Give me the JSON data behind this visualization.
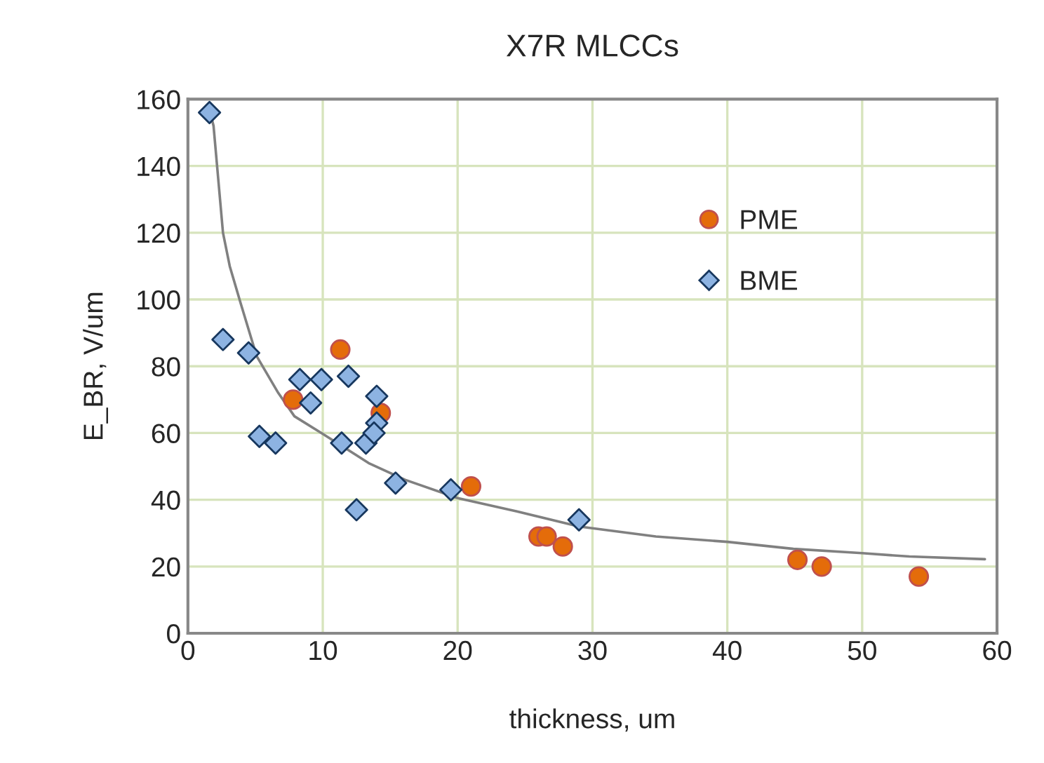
{
  "chart_data": {
    "type": "scatter",
    "title": "X7R MLCCs",
    "xlabel": "thickness, um",
    "ylabel": "E_BR, V/um",
    "xlim": [
      0,
      60
    ],
    "ylim": [
      0,
      160
    ],
    "xticks": [
      0,
      10,
      20,
      30,
      40,
      50,
      60
    ],
    "yticks": [
      0,
      20,
      40,
      60,
      80,
      100,
      120,
      140,
      160
    ],
    "grid": true,
    "legend": "top right",
    "series": [
      {
        "name": "PME",
        "marker": "circle",
        "color": "#e46c0a",
        "x": [
          7.8,
          11.3,
          14.3,
          21.0,
          26.0,
          26.6,
          27.8,
          45.2,
          47.0,
          54.2
        ],
        "values": [
          70,
          85,
          66,
          44,
          29,
          29,
          26,
          22,
          20,
          17
        ]
      },
      {
        "name": "BME",
        "marker": "diamond",
        "color": "#8db3e2",
        "x": [
          1.6,
          2.6,
          4.5,
          5.3,
          6.5,
          8.3,
          9.1,
          9.9,
          11.9,
          11.4,
          12.5,
          13.2,
          14.0,
          14.0,
          13.8,
          15.4,
          19.5,
          29.0
        ],
        "values": [
          156,
          88,
          84,
          59,
          57,
          76,
          69,
          76,
          77,
          57,
          37,
          57,
          71,
          63,
          60,
          45,
          43,
          34
        ]
      },
      {
        "type": "line",
        "marker": "none",
        "line_style": "solid",
        "color": "#808080",
        "x": [
          1.65,
          1.9,
          2.6,
          3.1,
          3.9,
          5.1,
          6.7,
          7.9,
          9.9,
          13.4,
          16.1,
          20,
          24.4,
          29,
          34.7,
          40,
          44.9,
          50,
          53.5,
          59.1
        ],
        "values": [
          156,
          152,
          120,
          110,
          99,
          83,
          72,
          65,
          60,
          51,
          46,
          40.5,
          36.5,
          32,
          29,
          27.4,
          25.3,
          24,
          23,
          22.2
        ]
      }
    ]
  }
}
